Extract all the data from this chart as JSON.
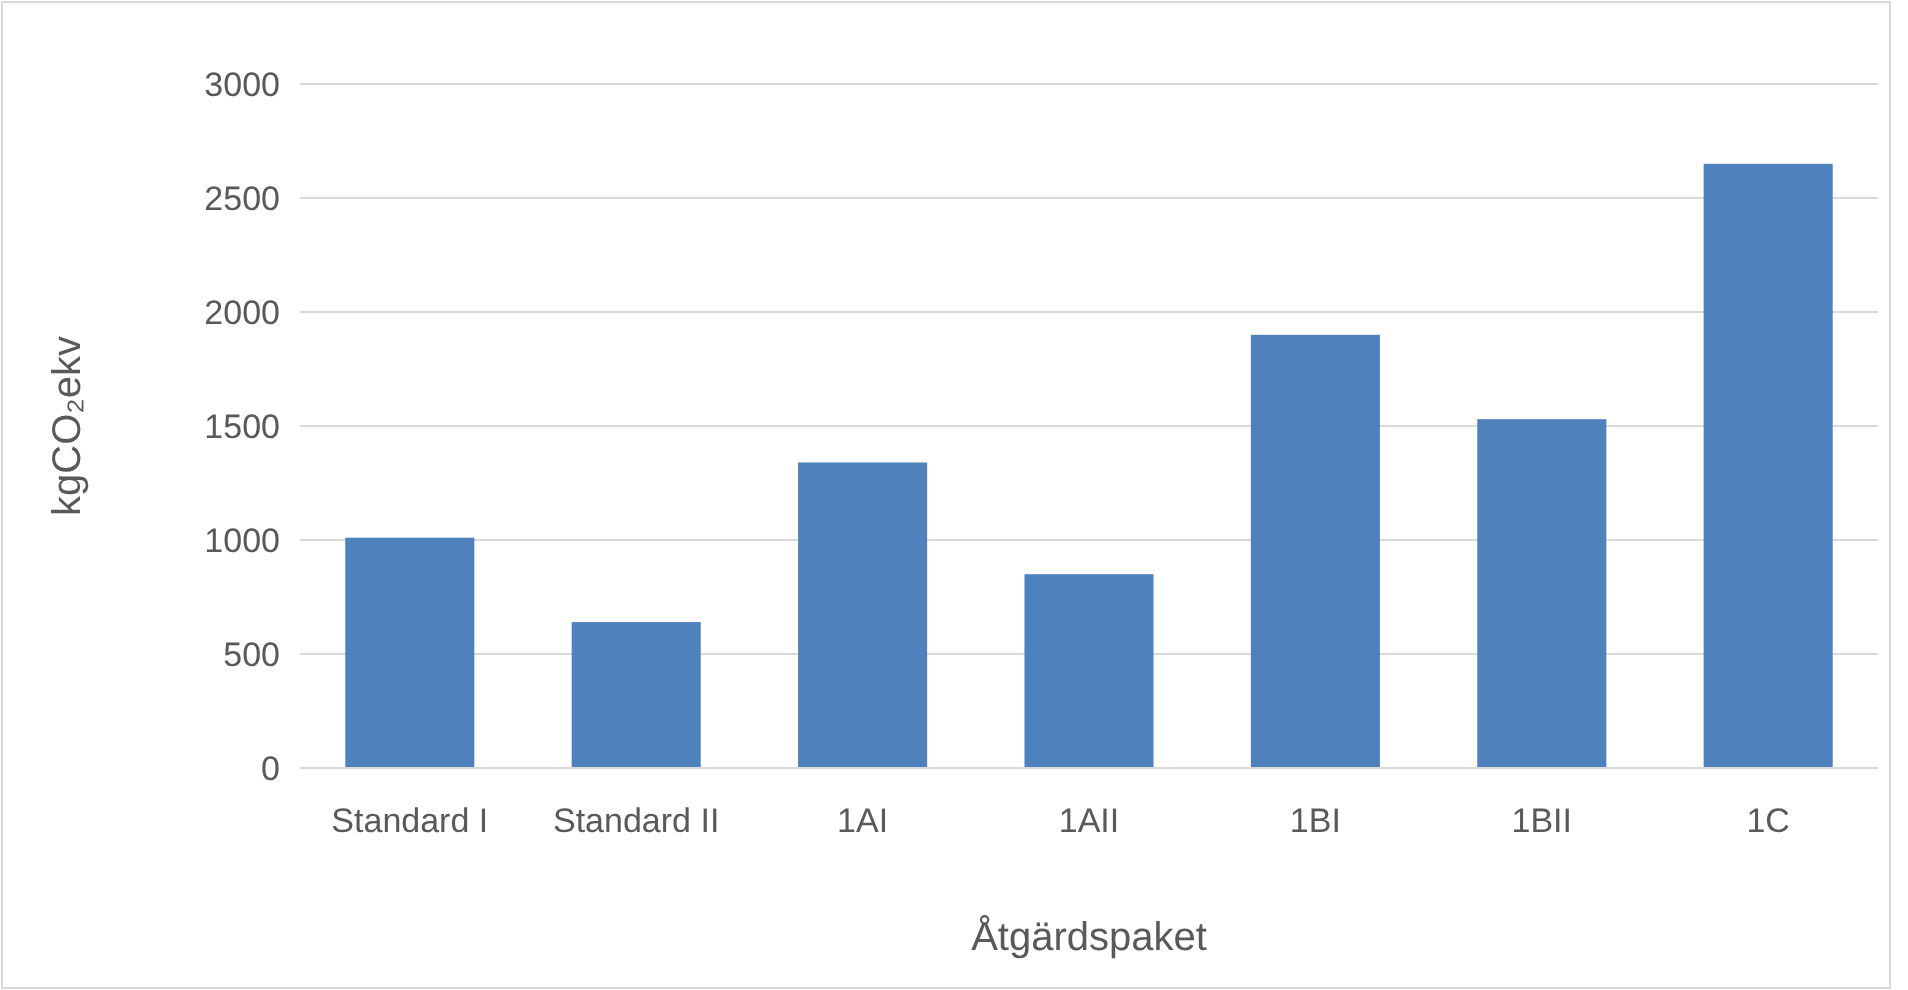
{
  "chart_data": {
    "type": "bar",
    "xlabel": "Åtgärdspaket",
    "ylabel": "kgCO₂ekv",
    "categories": [
      "Standard I",
      "Standard II",
      "1AI",
      "1AII",
      "1BI",
      "1BII",
      "1C"
    ],
    "values": [
      1010,
      640,
      1340,
      850,
      1900,
      1530,
      2650
    ],
    "color": "#4f81bd",
    "ylim": [
      0,
      3000
    ],
    "yticks": [
      0,
      500,
      1000,
      1500,
      2000,
      2500,
      3000
    ],
    "grid": "y"
  }
}
